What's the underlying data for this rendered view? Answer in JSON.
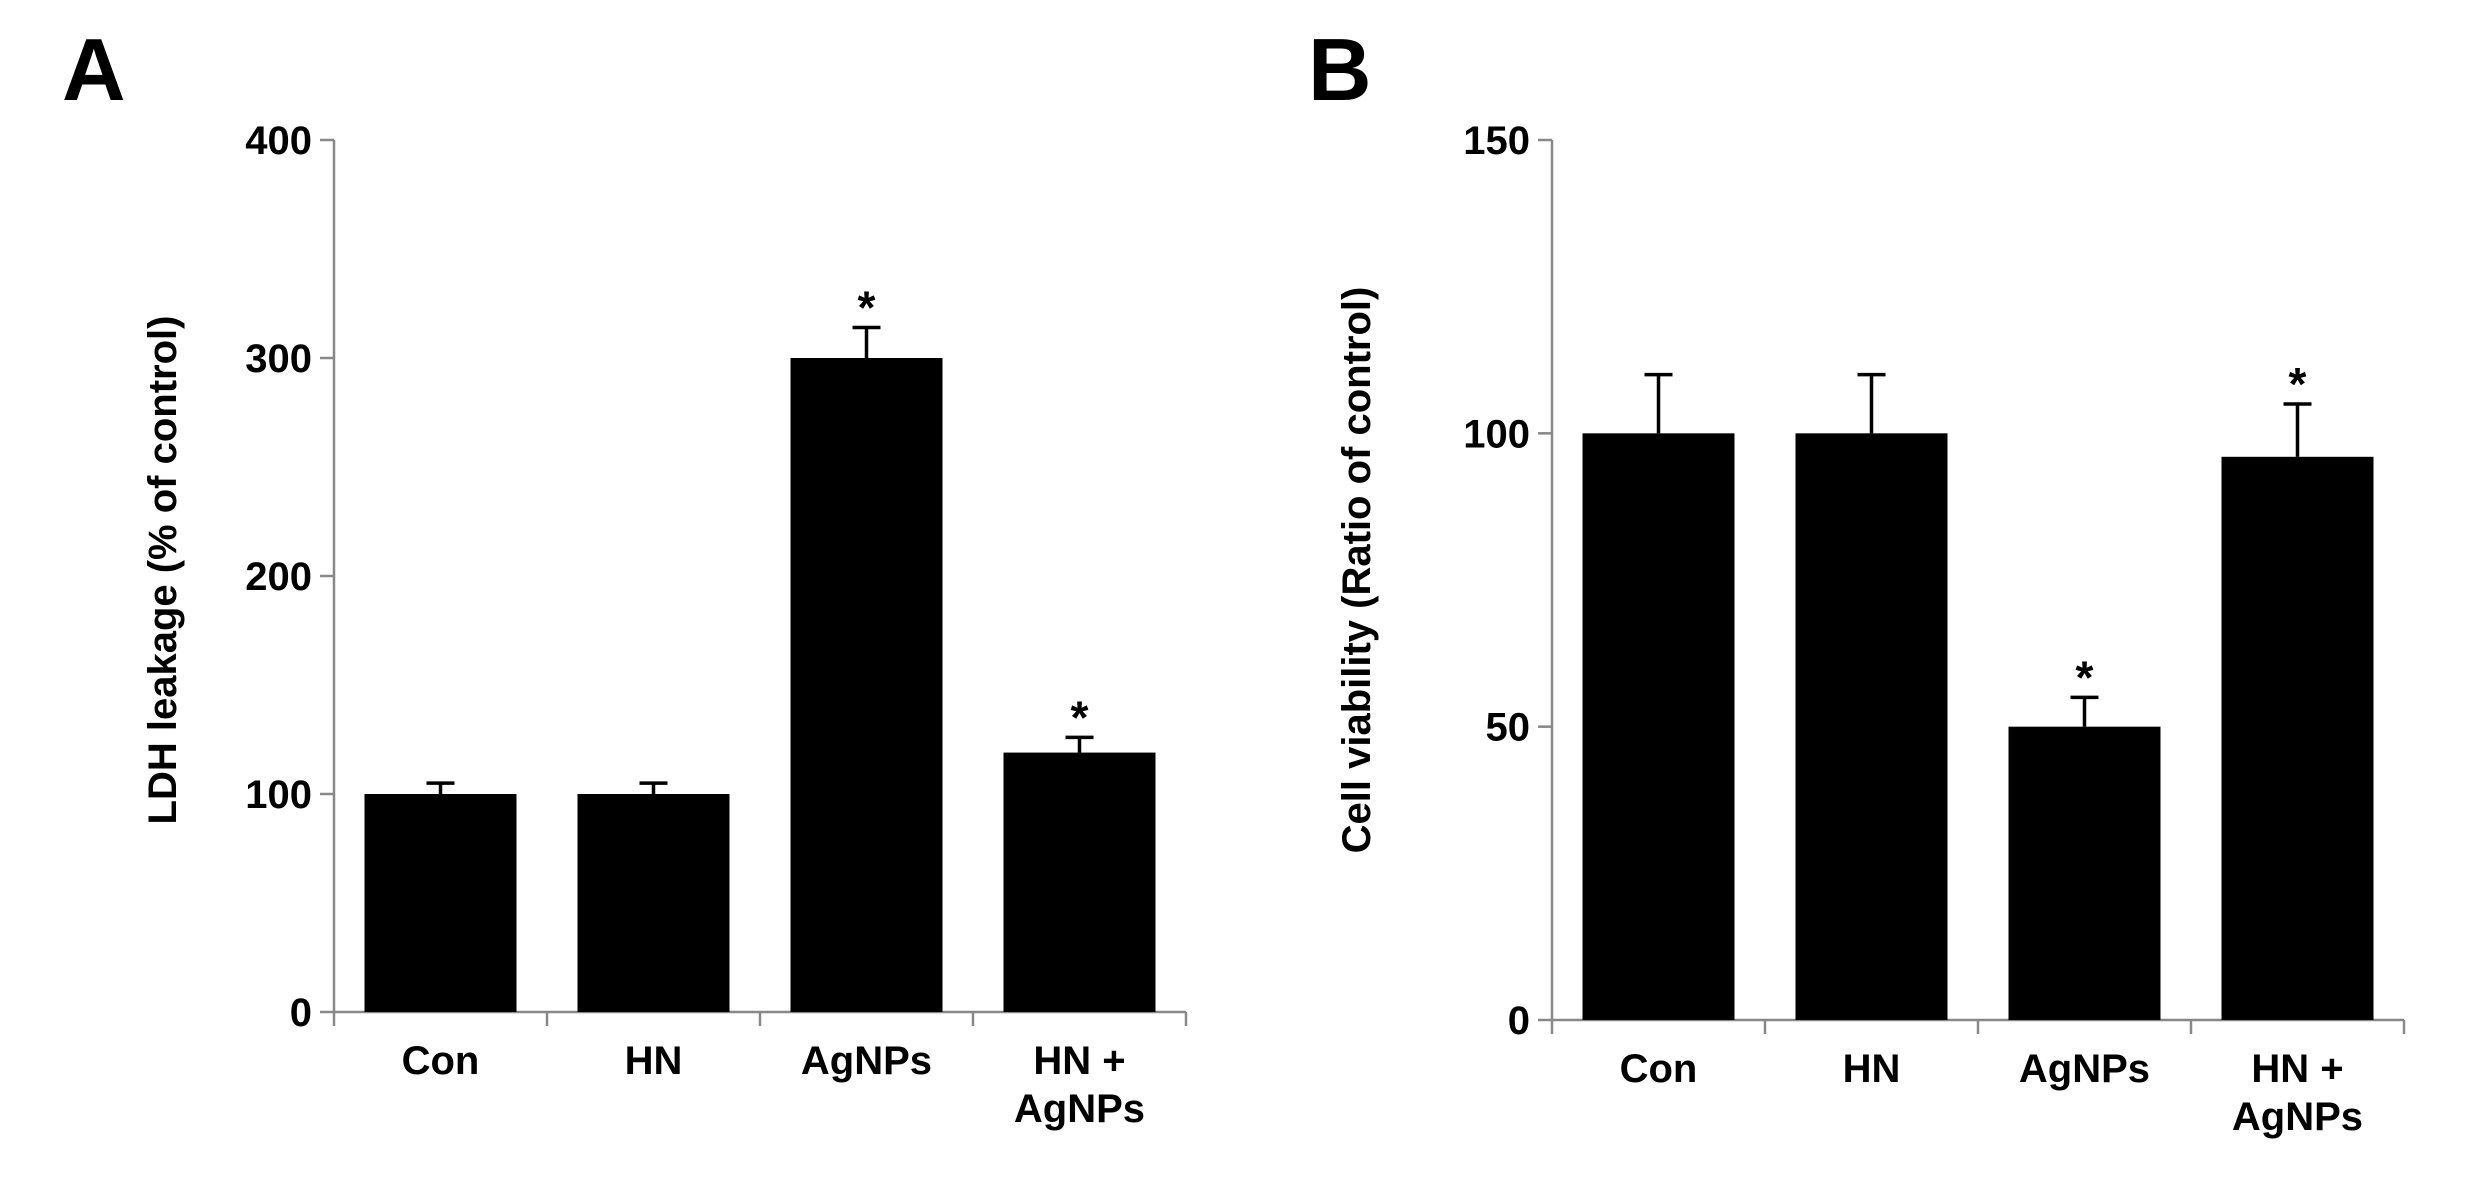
{
  "chart_data": [
    {
      "panel": "A",
      "type": "bar",
      "ylabel": "LDH leakage (% of control)",
      "xlabel": "",
      "categories": [
        [
          "Con"
        ],
        [
          "HN"
        ],
        [
          "AgNPs"
        ],
        [
          "HN +",
          "AgNPs"
        ]
      ],
      "values": [
        100,
        100,
        300,
        119
      ],
      "errors": [
        5,
        5,
        14,
        7
      ],
      "significance": [
        "",
        "",
        "*",
        "*"
      ],
      "ylim": [
        0,
        400
      ],
      "yticks": [
        0,
        100,
        200,
        300,
        400
      ],
      "grid": false,
      "bar_color": "#000000"
    },
    {
      "panel": "B",
      "type": "bar",
      "ylabel": "Cell viability (Ratio of control)",
      "xlabel": "",
      "categories": [
        [
          "Con"
        ],
        [
          "HN"
        ],
        [
          "AgNPs"
        ],
        [
          "HN +",
          "AgNPs"
        ]
      ],
      "values": [
        100,
        100,
        50,
        96
      ],
      "errors": [
        10,
        10,
        5,
        9
      ],
      "significance": [
        "",
        "",
        "*",
        "*"
      ],
      "ylim": [
        0,
        150
      ],
      "yticks": [
        0,
        50,
        100,
        150
      ],
      "grid": false,
      "bar_color": "#000000"
    }
  ]
}
